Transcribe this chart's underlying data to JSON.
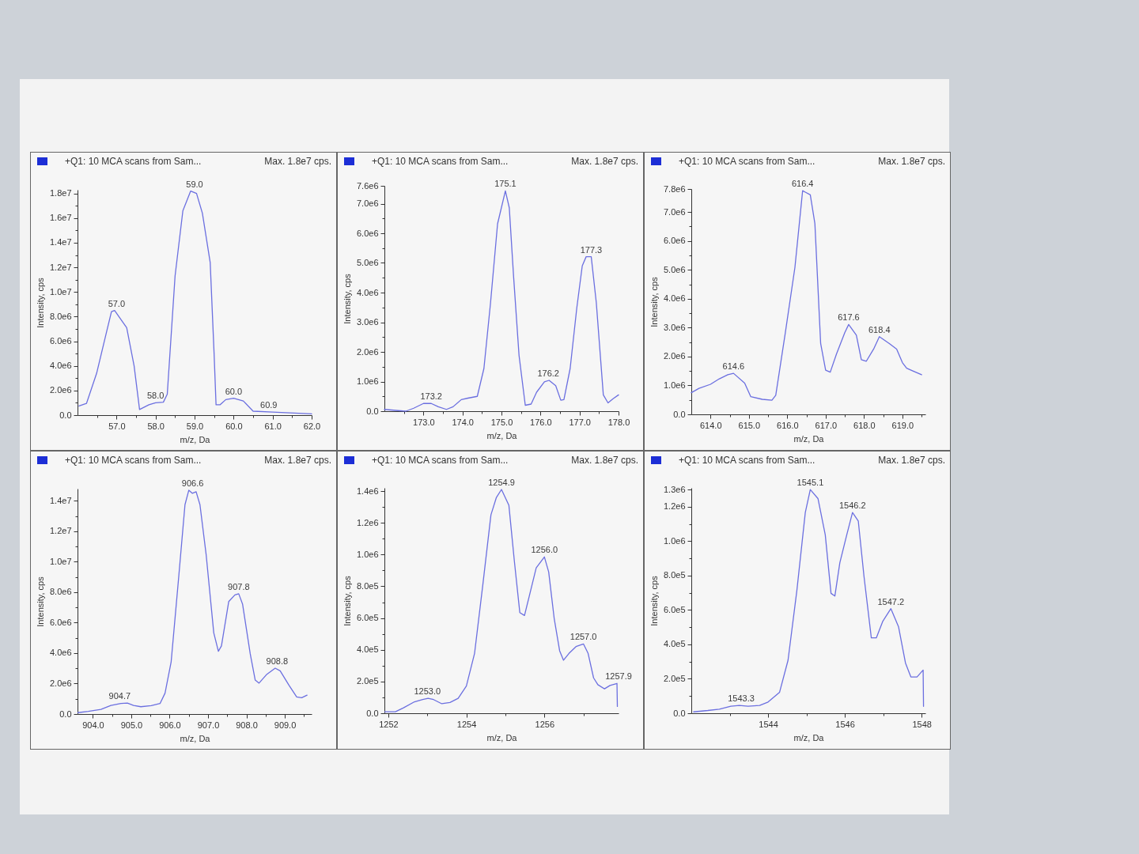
{
  "chart_data": [
    {
      "type": "line",
      "title": "+Q1: 10 MCA scans from Sam...",
      "subtitle": "Max. 1.8e7 cps.",
      "xlabel": "m/z, Da",
      "ylabel": "Intensity, cps",
      "x": [
        56.04,
        56.23,
        56.49,
        56.74,
        56.87,
        56.95,
        57.26,
        57.45,
        57.59,
        57.83,
        58.0,
        58.2,
        58.3,
        58.5,
        58.7,
        58.9,
        59.05,
        59.2,
        59.4,
        59.5,
        59.55,
        59.65,
        59.8,
        60.0,
        60.25,
        60.5,
        61.0,
        62.0
      ],
      "series": [
        {
          "color": "#6b6fe0",
          "values": [
            740000.0,
            950000.0,
            3400000.0,
            6700000.0,
            8400000.0,
            8500000.0,
            7100000.0,
            4000000.0,
            460000.0,
            840000.0,
            1000000.0,
            1050000.0,
            1700000.0,
            11300000.0,
            16600000.0,
            18200000.0,
            18000000.0,
            16400000.0,
            12400000.0,
            5000000.0,
            840000.0,
            840000.0,
            1260000.0,
            1370000.0,
            1150000.0,
            320000.0,
            250000.0,
            100000.0
          ]
        }
      ],
      "xlim": [
        56.0,
        62.0
      ],
      "ylim": [
        0,
        18300000.0
      ],
      "xticks": [
        {
          "value": 56.5,
          "label": null
        },
        {
          "value": 57,
          "label": "57.0"
        },
        {
          "value": 57.5,
          "label": null
        },
        {
          "value": 58,
          "label": "58.0"
        },
        {
          "value": 58.5,
          "label": null
        },
        {
          "value": 59,
          "label": "59.0"
        },
        {
          "value": 59.5,
          "label": null
        },
        {
          "value": 60,
          "label": "60.0"
        },
        {
          "value": 60.5,
          "label": null
        },
        {
          "value": 61,
          "label": "61.0"
        },
        {
          "value": 61.5,
          "label": null
        },
        {
          "value": 62,
          "label": "62.0"
        }
      ],
      "yticks": [
        {
          "value": 0,
          "label": "0.0"
        },
        {
          "value": 1000000.0,
          "label": null
        },
        {
          "value": 2000000.0,
          "label": "2.0e6"
        },
        {
          "value": 3000000.0,
          "label": null
        },
        {
          "value": 4000000.0,
          "label": "4.0e6"
        },
        {
          "value": 5000000.0,
          "label": null
        },
        {
          "value": 6000000.0,
          "label": "6.0e6"
        },
        {
          "value": 7000000.0,
          "label": null
        },
        {
          "value": 8000000.0,
          "label": "8.0e6"
        },
        {
          "value": 9000000.0,
          "label": null
        },
        {
          "value": 10000000.0,
          "label": "1.0e7"
        },
        {
          "value": 11000000.0,
          "label": null
        },
        {
          "value": 12000000.0,
          "label": "1.2e7"
        },
        {
          "value": 13000000.0,
          "label": null
        },
        {
          "value": 14000000.0,
          "label": "1.4e7"
        },
        {
          "value": 15000000.0,
          "label": null
        },
        {
          "value": 16000000.0,
          "label": "1.6e7"
        },
        {
          "value": 17000000.0,
          "label": null
        },
        {
          "value": 18000000.0,
          "label": "1.8e7"
        }
      ],
      "annotations": [
        {
          "text": "57.0",
          "x": 57.0,
          "y": 8500000.0
        },
        {
          "text": "58.0",
          "x": 58.0,
          "y": 1050000.0
        },
        {
          "text": "59.0",
          "x": 59.0,
          "y": 18200000.0
        },
        {
          "text": "60.0",
          "x": 60.0,
          "y": 1370000.0
        },
        {
          "text": "60.9",
          "x": 60.9,
          "y": 260000.0
        }
      ]
    },
    {
      "type": "line",
      "title": "+Q1: 10 MCA scans from Sam...",
      "subtitle": "Max. 1.8e7 cps.",
      "xlabel": "m/z, Da",
      "ylabel": "Intensity, cps",
      "x": [
        172.0,
        172.35,
        172.55,
        172.75,
        173.0,
        173.2,
        173.38,
        173.59,
        173.76,
        173.97,
        174.14,
        174.38,
        174.55,
        174.72,
        174.9,
        175.1,
        175.2,
        175.31,
        175.45,
        175.61,
        175.76,
        175.9,
        176.1,
        176.22,
        176.39,
        176.52,
        176.6,
        176.76,
        176.93,
        177.07,
        177.17,
        177.3,
        177.43,
        177.61,
        177.73,
        177.86,
        178.0
      ],
      "series": [
        {
          "color": "#6b6fe0",
          "values": [
            60000.0,
            20000.0,
            0,
            100000.0,
            260000.0,
            260000.0,
            150000.0,
            60000.0,
            150000.0,
            390000.0,
            440000.0,
            500000.0,
            1440000.0,
            3660000.0,
            6320000.0,
            7430000.0,
            6860000.0,
            4550000.0,
            1880000.0,
            200000.0,
            240000.0,
            640000.0,
            990000.0,
            1040000.0,
            860000.0,
            370000.0,
            390000.0,
            1440000.0,
            3480000.0,
            4900000.0,
            5210000.0,
            5210000.0,
            3660000.0,
            550000.0,
            280000.0,
            420000.0,
            550000.0
          ]
        }
      ],
      "xlim": [
        172.0,
        178.0
      ],
      "ylim": [
        0,
        7600000.0
      ],
      "xticks": [
        {
          "value": 172.5,
          "label": null
        },
        {
          "value": 173,
          "label": "173.0"
        },
        {
          "value": 173.5,
          "label": null
        },
        {
          "value": 174,
          "label": "174.0"
        },
        {
          "value": 174.5,
          "label": null
        },
        {
          "value": 175,
          "label": "175.0"
        },
        {
          "value": 175.5,
          "label": null
        },
        {
          "value": 176,
          "label": "176.0"
        },
        {
          "value": 176.5,
          "label": null
        },
        {
          "value": 177,
          "label": "177.0"
        },
        {
          "value": 177.5,
          "label": null
        },
        {
          "value": 178,
          "label": "178.0"
        }
      ],
      "yticks": [
        {
          "value": 0,
          "label": "0.0"
        },
        {
          "value": 500000.0,
          "label": null
        },
        {
          "value": 1000000.0,
          "label": "1.0e6"
        },
        {
          "value": 1500000.0,
          "label": null
        },
        {
          "value": 2000000.0,
          "label": "2.0e6"
        },
        {
          "value": 2500000.0,
          "label": null
        },
        {
          "value": 3000000.0,
          "label": "3.0e6"
        },
        {
          "value": 3500000.0,
          "label": null
        },
        {
          "value": 4000000.0,
          "label": "4.0e6"
        },
        {
          "value": 4500000.0,
          "label": null
        },
        {
          "value": 5000000.0,
          "label": "5.0e6"
        },
        {
          "value": 5500000.0,
          "label": null
        },
        {
          "value": 6000000.0,
          "label": "6.0e6"
        },
        {
          "value": 6500000.0,
          "label": null
        },
        {
          "value": 7000000.0,
          "label": "7.0e6"
        },
        {
          "value": 7600000.0,
          "label": "7.6e6"
        }
      ],
      "annotations": [
        {
          "text": "173.2",
          "x": 173.2,
          "y": 260000.0
        },
        {
          "text": "175.1",
          "x": 175.1,
          "y": 7430000.0
        },
        {
          "text": "176.2",
          "x": 176.2,
          "y": 1040000.0
        },
        {
          "text": "177.3",
          "x": 177.3,
          "y": 5210000.0
        }
      ]
    },
    {
      "type": "line",
      "title": "+Q1: 10 MCA scans from Sam...",
      "subtitle": "Max. 1.8e7 cps.",
      "xlabel": "m/z, Da",
      "ylabel": "Intensity, cps",
      "x": [
        613.5,
        613.7,
        614.0,
        614.23,
        614.45,
        614.6,
        614.89,
        615.05,
        615.35,
        615.6,
        615.7,
        615.95,
        616.2,
        616.4,
        616.6,
        616.72,
        616.87,
        617.0,
        617.12,
        617.28,
        617.5,
        617.6,
        617.8,
        617.93,
        618.06,
        618.25,
        618.4,
        618.66,
        618.85,
        619.0,
        619.11,
        619.26,
        619.5
      ],
      "series": [
        {
          "color": "#6b6fe0",
          "values": [
            750000.0,
            900000.0,
            1040000.0,
            1230000.0,
            1370000.0,
            1420000.0,
            1080000.0,
            610000.0,
            520000.0,
            490000.0,
            660000.0,
            2830000.0,
            5090000.0,
            7740000.0,
            7600000.0,
            6600000.0,
            2450000.0,
            1530000.0,
            1460000.0,
            2080000.0,
            2830000.0,
            3110000.0,
            2740000.0,
            1890000.0,
            1840000.0,
            2260000.0,
            2690000.0,
            2450000.0,
            2260000.0,
            1790000.0,
            1600000.0,
            1510000.0,
            1370000.0
          ]
        }
      ],
      "xlim": [
        613.5,
        619.6
      ],
      "ylim": [
        0,
        7800000.0
      ],
      "xticks": [
        {
          "value": 614,
          "label": "614.0"
        },
        {
          "value": 614.5,
          "label": null
        },
        {
          "value": 615,
          "label": "615.0"
        },
        {
          "value": 615.5,
          "label": null
        },
        {
          "value": 616,
          "label": "616.0"
        },
        {
          "value": 616.5,
          "label": null
        },
        {
          "value": 617,
          "label": "617.0"
        },
        {
          "value": 617.5,
          "label": null
        },
        {
          "value": 618,
          "label": "618.0"
        },
        {
          "value": 618.5,
          "label": null
        },
        {
          "value": 619,
          "label": "619.0"
        },
        {
          "value": 619.5,
          "label": null
        }
      ],
      "yticks": [
        {
          "value": 0,
          "label": "0.0"
        },
        {
          "value": 500000.0,
          "label": null
        },
        {
          "value": 1000000.0,
          "label": "1.0e6"
        },
        {
          "value": 1500000.0,
          "label": null
        },
        {
          "value": 2000000.0,
          "label": "2.0e6"
        },
        {
          "value": 2500000.0,
          "label": null
        },
        {
          "value": 3000000.0,
          "label": "3.0e6"
        },
        {
          "value": 3500000.0,
          "label": null
        },
        {
          "value": 4000000.0,
          "label": "4.0e6"
        },
        {
          "value": 4500000.0,
          "label": null
        },
        {
          "value": 5000000.0,
          "label": "5.0e6"
        },
        {
          "value": 5500000.0,
          "label": null
        },
        {
          "value": 6000000.0,
          "label": "6.0e6"
        },
        {
          "value": 6500000.0,
          "label": null
        },
        {
          "value": 7000000.0,
          "label": "7.0e6"
        },
        {
          "value": 7800000.0,
          "label": "7.8e6"
        }
      ],
      "annotations": [
        {
          "text": "614.6",
          "x": 614.6,
          "y": 1420000.0
        },
        {
          "text": "616.4",
          "x": 616.4,
          "y": 7740000.0
        },
        {
          "text": "617.6",
          "x": 617.6,
          "y": 3110000.0
        },
        {
          "text": "618.4",
          "x": 618.4,
          "y": 2690000.0
        }
      ]
    },
    {
      "type": "line",
      "title": "+Q1: 10 MCA scans from Sam...",
      "subtitle": "Max. 1.8e7 cps.",
      "xlabel": "m/z, Da",
      "ylabel": "Intensity, cps",
      "x": [
        903.61,
        903.88,
        904.21,
        904.47,
        904.73,
        904.9,
        905.06,
        905.25,
        905.52,
        905.75,
        905.88,
        906.04,
        906.24,
        906.4,
        906.5,
        906.59,
        906.69,
        906.79,
        906.95,
        907.15,
        907.27,
        907.35,
        907.54,
        907.7,
        907.8,
        907.9,
        908.1,
        908.23,
        908.33,
        908.52,
        908.75,
        908.88,
        909.11,
        909.31,
        909.44,
        909.58
      ],
      "series": [
        {
          "color": "#6b6fe0",
          "values": [
            90000.0,
            170000.0,
            310000.0,
            570000.0,
            690000.0,
            720000.0,
            570000.0,
            480000.0,
            550000.0,
            690000.0,
            1370000.0,
            3440000.0,
            9100000.0,
            13750000.0,
            14700000.0,
            14500000.0,
            14600000.0,
            13750000.0,
            10500000.0,
            5330000.0,
            4120000.0,
            4470000.0,
            7390000.0,
            7820000.0,
            7900000.0,
            7220000.0,
            3950000.0,
            2230000.0,
            2030000.0,
            2580000.0,
            3010000.0,
            2840000.0,
            1890000.0,
            1120000.0,
            1070000.0,
            1240000.0
          ]
        }
      ],
      "xlim": [
        903.6,
        909.7
      ],
      "ylim": [
        0,
        14800000.0
      ],
      "xticks": [
        {
          "value": 904,
          "label": "904.0"
        },
        {
          "value": 904.5,
          "label": null
        },
        {
          "value": 905,
          "label": "905.0"
        },
        {
          "value": 905.5,
          "label": null
        },
        {
          "value": 906,
          "label": "906.0"
        },
        {
          "value": 906.5,
          "label": null
        },
        {
          "value": 907,
          "label": "907.0"
        },
        {
          "value": 907.5,
          "label": null
        },
        {
          "value": 908,
          "label": "908.0"
        },
        {
          "value": 908.5,
          "label": null
        },
        {
          "value": 909,
          "label": "909.0"
        },
        {
          "value": 909.5,
          "label": null
        }
      ],
      "yticks": [
        {
          "value": 0,
          "label": "0.0"
        },
        {
          "value": 1000000.0,
          "label": null
        },
        {
          "value": 2000000.0,
          "label": "2.0e6"
        },
        {
          "value": 3000000.0,
          "label": null
        },
        {
          "value": 4000000.0,
          "label": "4.0e6"
        },
        {
          "value": 5000000.0,
          "label": null
        },
        {
          "value": 6000000.0,
          "label": "6.0e6"
        },
        {
          "value": 7000000.0,
          "label": null
        },
        {
          "value": 8000000.0,
          "label": "8.0e6"
        },
        {
          "value": 9000000.0,
          "label": null
        },
        {
          "value": 10000000.0,
          "label": "1.0e7"
        },
        {
          "value": 11000000.0,
          "label": null
        },
        {
          "value": 12000000.0,
          "label": "1.2e7"
        },
        {
          "value": 13000000.0,
          "label": null
        },
        {
          "value": 14000000.0,
          "label": "1.4e7"
        }
      ],
      "annotations": [
        {
          "text": "904.7",
          "x": 904.7,
          "y": 720000.0
        },
        {
          "text": "906.6",
          "x": 906.6,
          "y": 14700000.0
        },
        {
          "text": "907.8",
          "x": 907.8,
          "y": 7900000.0
        },
        {
          "text": "908.8",
          "x": 908.8,
          "y": 3010000.0
        }
      ]
    },
    {
      "type": "line",
      "title": "+Q1: 10 MCA scans from Sam...",
      "subtitle": "Max. 1.8e7 cps.",
      "xlabel": "m/z, Da",
      "ylabel": "Intensity, cps",
      "x": [
        1251.91,
        1252.18,
        1252.39,
        1252.67,
        1252.88,
        1253.02,
        1253.16,
        1253.37,
        1253.58,
        1253.79,
        1254.0,
        1254.21,
        1254.42,
        1254.63,
        1254.77,
        1254.9,
        1255.09,
        1255.23,
        1255.37,
        1255.49,
        1255.61,
        1255.79,
        1256.0,
        1256.11,
        1256.25,
        1256.39,
        1256.49,
        1256.63,
        1256.81,
        1257.0,
        1257.12,
        1257.26,
        1257.37,
        1257.54,
        1257.68,
        1257.86,
        1257.87
      ],
      "series": [
        {
          "color": "#6b6fe0",
          "values": [
            9000.0,
            9000.0,
            34000.0,
            72000.0,
            86000.0,
            94000.0,
            86000.0,
            60000.0,
            68000.0,
            94000.0,
            171000.0,
            377000.0,
            805000.0,
            1250000.0,
            1360000.0,
            1410000.0,
            1310000.0,
            959000.0,
            634000.0,
            616000.0,
            736000.0,
            916000.0,
            985000.0,
            890000.0,
            599000.0,
            394000.0,
            334000.0,
            377000.0,
            420000.0,
            437000.0,
            377000.0,
            223000.0,
            180000.0,
            154000.0,
            175000.0,
            188000.0,
            43000.0
          ]
        }
      ],
      "xlim": [
        1251.9,
        1257.9
      ],
      "ylim": [
        0,
        1420000.0
      ],
      "xticks": [
        1252,
        {
          "value": 1253,
          "label": null
        },
        1254,
        {
          "value": 1255,
          "label": null
        },
        1256,
        {
          "value": 1257,
          "label": null
        }
      ],
      "yticks": [
        {
          "value": 0,
          "label": "0.0"
        },
        {
          "value": 100000.0,
          "label": null
        },
        {
          "value": 200000.0,
          "label": "2.0e5"
        },
        {
          "value": 300000.0,
          "label": null
        },
        {
          "value": 400000.0,
          "label": "4.0e5"
        },
        {
          "value": 500000.0,
          "label": null
        },
        {
          "value": 600000.0,
          "label": "6.0e5"
        },
        {
          "value": 700000.0,
          "label": null
        },
        {
          "value": 800000.0,
          "label": "8.0e5"
        },
        {
          "value": 900000.0,
          "label": null
        },
        {
          "value": 1000000.0,
          "label": "1.0e6"
        },
        {
          "value": 1100000.0,
          "label": null
        },
        {
          "value": 1200000.0,
          "label": "1.2e6"
        },
        {
          "value": 1300000.0,
          "label": null
        },
        {
          "value": 1400000.0,
          "label": "1.4e6"
        }
      ],
      "annotations": [
        {
          "text": "1253.0",
          "x": 1253.0,
          "y": 94000.0
        },
        {
          "text": "1254.9",
          "x": 1254.9,
          "y": 1410000.0
        },
        {
          "text": "1256.0",
          "x": 1256.0,
          "y": 985000.0
        },
        {
          "text": "1257.0",
          "x": 1257.0,
          "y": 437000.0
        },
        {
          "text": "1257.9",
          "x": 1257.9,
          "y": 188000.0
        }
      ]
    },
    {
      "type": "line",
      "title": "+Q1: 10 MCA scans from Sam...",
      "subtitle": "Max. 1.8e7 cps.",
      "xlabel": "m/z, Da",
      "ylabel": "Intensity, cps",
      "x": [
        1542.06,
        1542.43,
        1542.73,
        1543.03,
        1543.25,
        1543.48,
        1543.78,
        1544.0,
        1544.3,
        1544.52,
        1544.75,
        1544.97,
        1545.1,
        1545.3,
        1545.49,
        1545.64,
        1545.74,
        1545.87,
        1546.05,
        1546.2,
        1546.35,
        1546.5,
        1546.69,
        1546.82,
        1546.99,
        1547.2,
        1547.4,
        1547.58,
        1547.72,
        1547.88,
        1548.04,
        1548.05
      ],
      "series": [
        {
          "color": "#6b6fe0",
          "values": [
            8000.0,
            16000.0,
            24000.0,
            41000.0,
            45000.0,
            41000.0,
            45000.0,
            65000.0,
            122000.0,
            308000.0,
            713000.0,
            1167000.0,
            1300000.0,
            1248000.0,
            1037000.0,
            697000.0,
            681000.0,
            875000.0,
            1037000.0,
            1167000.0,
            1118000.0,
            794000.0,
            438000.0,
            438000.0,
            535000.0,
            608000.0,
            502000.0,
            292000.0,
            211000.0,
            211000.0,
            251000.0,
            40000.0
          ]
        }
      ],
      "xlim": [
        1542.0,
        1548.1
      ],
      "ylim": [
        0,
        1310000.0
      ],
      "xticks": [
        {
          "value": 1543,
          "label": null
        },
        1544,
        {
          "value": 1545,
          "label": null
        },
        1546,
        {
          "value": 1547,
          "label": null
        },
        1548
      ],
      "yticks": [
        {
          "value": 0,
          "label": "0.0"
        },
        {
          "value": 100000.0,
          "label": null
        },
        {
          "value": 200000.0,
          "label": "2.0e5"
        },
        {
          "value": 300000.0,
          "label": null
        },
        {
          "value": 400000.0,
          "label": "4.0e5"
        },
        {
          "value": 500000.0,
          "label": null
        },
        {
          "value": 600000.0,
          "label": "6.0e5"
        },
        {
          "value": 700000.0,
          "label": null
        },
        {
          "value": 800000.0,
          "label": "8.0e5"
        },
        {
          "value": 900000.0,
          "label": null
        },
        {
          "value": 1000000.0,
          "label": "1.0e6"
        },
        {
          "value": 1100000.0,
          "label": null
        },
        {
          "value": 1200000.0,
          "label": "1.2e6"
        },
        {
          "value": 1300000.0,
          "label": "1.3e6"
        }
      ],
      "annotations": [
        {
          "text": "1543.3",
          "x": 1543.3,
          "y": 45000.0
        },
        {
          "text": "1545.1",
          "x": 1545.1,
          "y": 1300000.0
        },
        {
          "text": "1546.2",
          "x": 1546.2,
          "y": 1167000.0
        },
        {
          "text": "1547.2",
          "x": 1547.2,
          "y": 608000.0
        }
      ]
    }
  ]
}
